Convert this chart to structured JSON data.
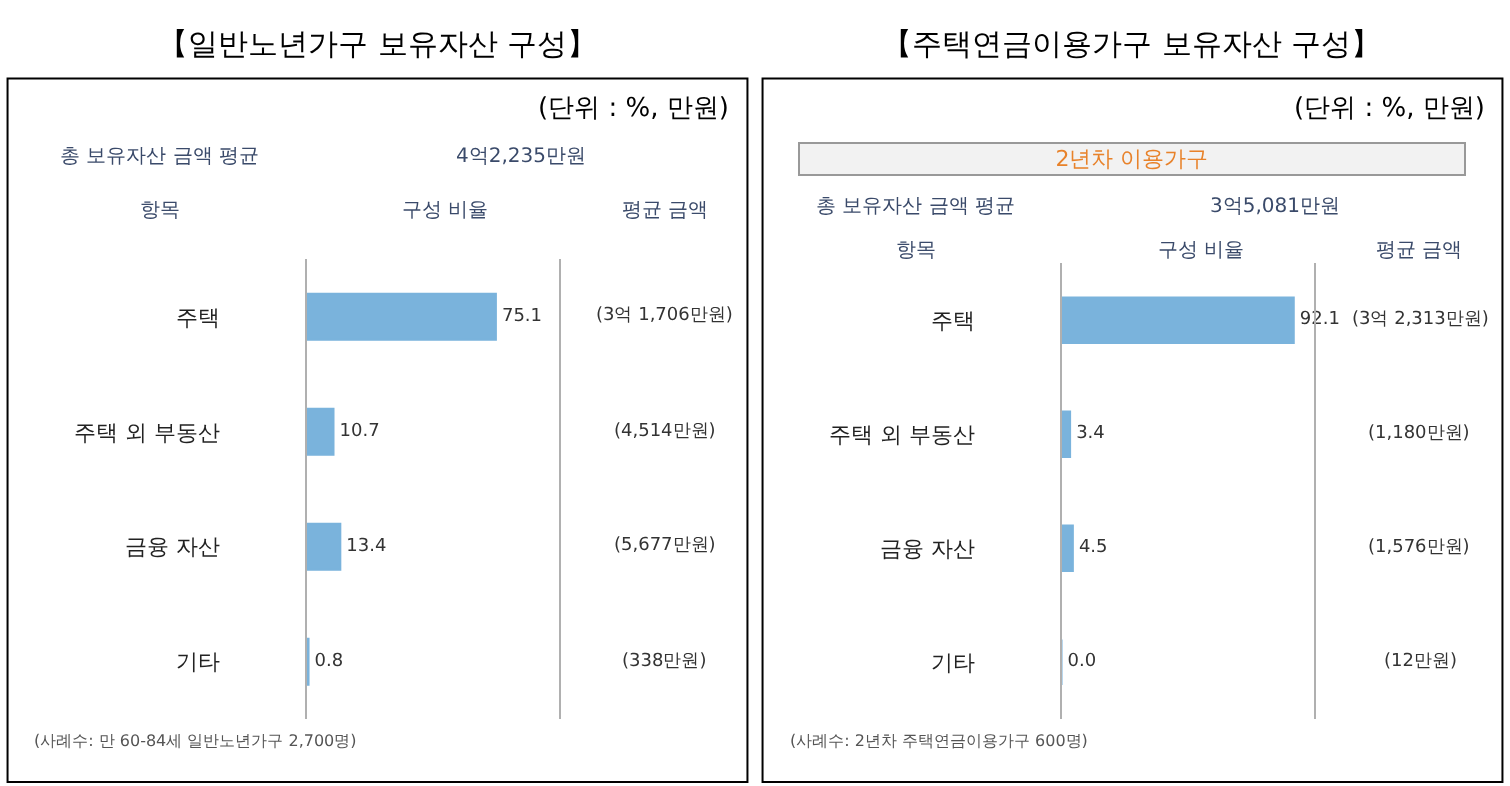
{
  "chart_data": [
    {
      "type": "bar",
      "orientation": "horizontal",
      "title": "【일반노년가구 보유자산 구성】",
      "subtitle": "(단위 : %, 만원)",
      "categories": [
        "주택",
        "주택 외 부동산",
        "금융 자산",
        "기타"
      ],
      "values": [
        75.1,
        10.7,
        13.4,
        0.8
      ],
      "value_labels": [
        "75.1",
        "10.7",
        "13.4",
        "0.8"
      ],
      "color": "#7ab3dc",
      "xlim": [
        0,
        100
      ],
      "annotations": [
        "총 보유자산 금액 평균",
        "4억2,235만원",
        "항목",
        "구성 비율",
        "평균 금액",
        "(3억 1,706만원)",
        "(4,514만원)",
        "(5,677만원)",
        "(338만원)",
        "(사례수: 만 60-84세 일반노년가구 2,700명)"
      ]
    },
    {
      "type": "bar",
      "orientation": "horizontal",
      "title": "【주택연금이용가구 보유자산 구성】",
      "subtitle": "(단위 : %, 만원)",
      "categories": [
        "주택",
        "주택 외 부동산",
        "금융 자산",
        "기타"
      ],
      "values": [
        92.1,
        3.4,
        4.5,
        0.0
      ],
      "value_labels": [
        "92.1",
        "3.4",
        "4.5",
        "0.0"
      ],
      "color": "#7ab3dc",
      "xlim": [
        0,
        100
      ],
      "annotations": [
        "2년차 이용가구",
        "총 보유자산 금액 평균",
        "3억5,081만원",
        "항목",
        "구성 비율",
        "평균 금액",
        "(3억 2,313만원)",
        "(1,180만원)",
        "(1,576만원)",
        "(12만원)",
        "(사례수: 2년차 주택연금이용가구 600명)"
      ]
    }
  ]
}
